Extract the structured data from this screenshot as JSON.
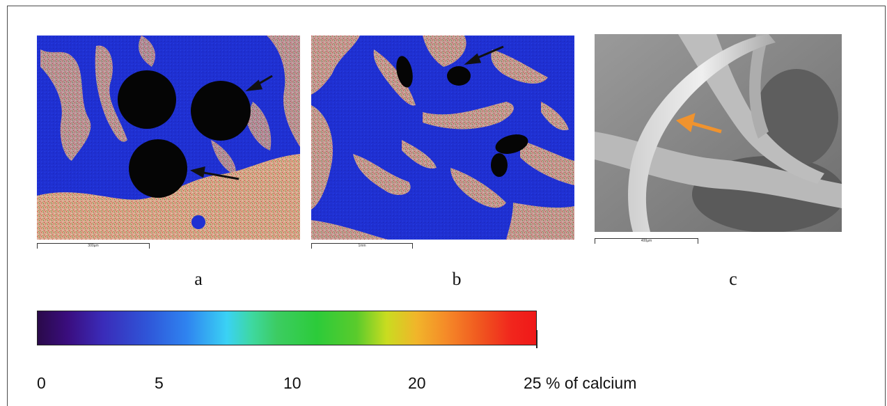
{
  "panels": [
    {
      "label": "a",
      "scalebar": "300µm"
    },
    {
      "label": "b",
      "scalebar": "1mm"
    },
    {
      "label": "c",
      "scalebar": "400µm"
    }
  ],
  "colorbar": {
    "labels": [
      "0",
      "5",
      "10",
      "20",
      "25 % of calcium"
    ],
    "colors": [
      "#2a0a4a",
      "#3a2bb8",
      "#2f84f0",
      "#3ad2f4",
      "#2ccb3a",
      "#c9dc20",
      "#f58a28",
      "#f01818"
    ]
  },
  "colors": {
    "map_background_blue": "#1f2fd0",
    "map_calcium_rich": "#d9a98a",
    "pore_black": "#050505",
    "sem_gray": "#8a8a8a",
    "arrow_black": "#111111",
    "arrow_orange": "#f0932e"
  }
}
